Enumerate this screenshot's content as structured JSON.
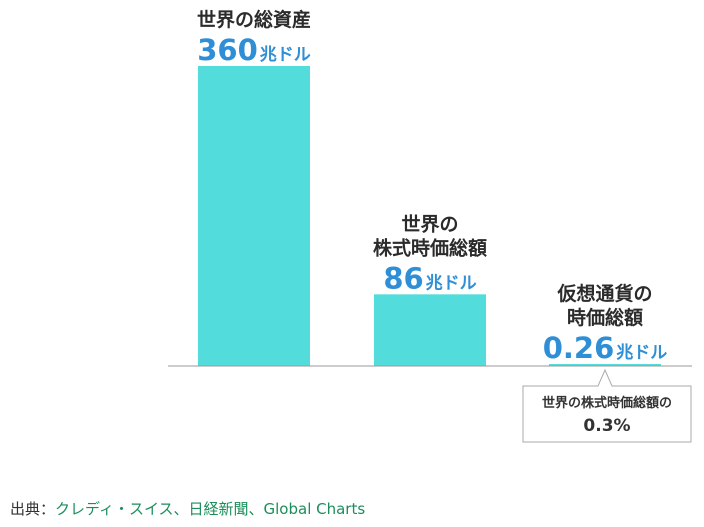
{
  "chart_data": {
    "type": "bar",
    "categories": [
      [
        "世界の総資産"
      ],
      [
        "世界の",
        "株式時価総額"
      ],
      [
        "仮想通貨の",
        "時価総額"
      ]
    ],
    "values": [
      360,
      86,
      0.26
    ],
    "value_labels": [
      "360",
      "86",
      "0.26"
    ],
    "unit": "兆ドル",
    "ylim": [
      0,
      360
    ],
    "annotation": {
      "lines": [
        "世界の株式時価総額の",
        "0.3%"
      ],
      "target_index": 2
    },
    "grid": false,
    "colors": {
      "bar": "#52dcdc",
      "value_text": "#2f8fd6",
      "baseline": "#999999"
    }
  },
  "source": {
    "label": "出典：",
    "text": "クレディ・スイス、日経新聞、Global Charts"
  }
}
